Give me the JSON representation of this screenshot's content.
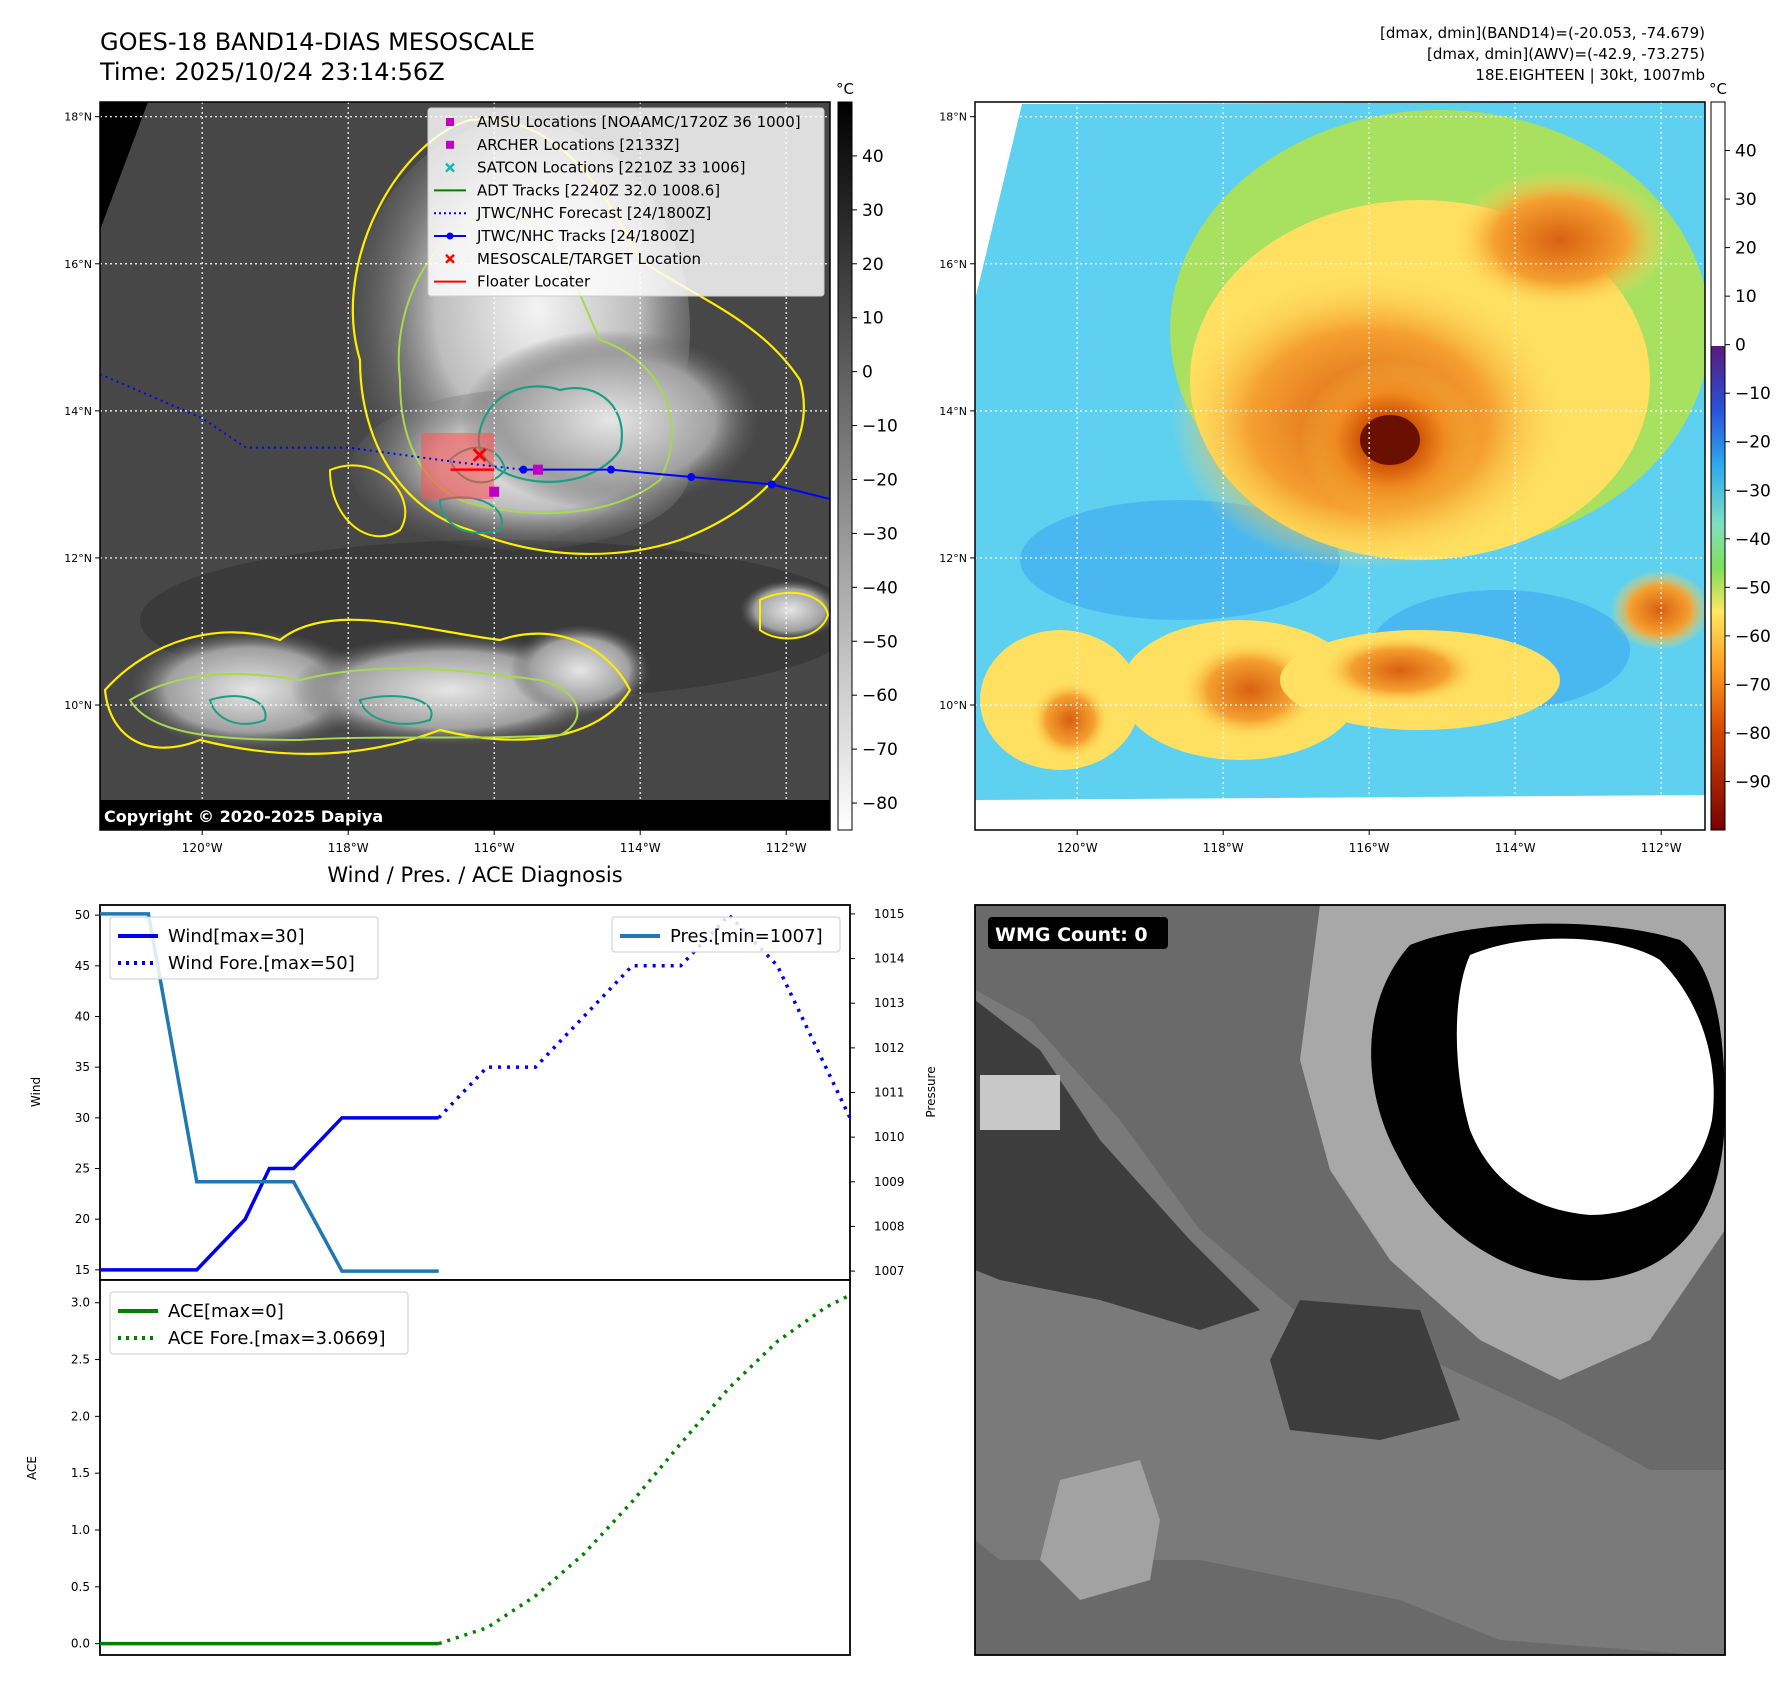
{
  "header": {
    "title_line1": "GOES-18 BAND14-DIAS MESOSCALE",
    "title_line2": "Time: 2025/10/24 23:14:56Z",
    "stats_line1": "[dmax, dmin](BAND14)=(-20.053, -74.679)",
    "stats_line2": "[dmax, dmin](AWV)=(-42.9, -73.275)",
    "stats_line3": "18E.EIGHTEEN | 30kt, 1007mb"
  },
  "map_axes": {
    "lat_labels": [
      "18°N",
      "16°N",
      "14°N",
      "12°N",
      "10°N"
    ],
    "lat_values": [
      18,
      16,
      14,
      12,
      10
    ],
    "lon_labels": [
      "120°W",
      "118°W",
      "116°W",
      "114°W",
      "112°W"
    ],
    "lon_values": [
      -120,
      -118,
      -116,
      -114,
      -112
    ],
    "lat_range": [
      8.3,
      18.2
    ],
    "lon_range": [
      -121.4,
      -111.4
    ]
  },
  "ir_panel": {
    "legend": [
      {
        "label": "AMSU Locations [NOAAMC/1720Z 36 1000]",
        "color": "#c000c0",
        "marker": "square"
      },
      {
        "label": "ARCHER Locations [2133Z]",
        "color": "#c000c0",
        "marker": "square"
      },
      {
        "label": "SATCON Locations [2210Z 33 1006]",
        "color": "#17b8b8",
        "marker": "x"
      },
      {
        "label": "ADT Tracks [2240Z 32.0 1008.6]",
        "color": "#008000",
        "marker": "line"
      },
      {
        "label": "JTWC/NHC Forecast [24/1800Z]",
        "color": "#0000ff",
        "marker": "dotted"
      },
      {
        "label": "JTWC/NHC Tracks [24/1800Z]",
        "color": "#0000ff",
        "marker": "line-dot"
      },
      {
        "label": "MESOSCALE/TARGET Location",
        "color": "#ff0000",
        "marker": "x"
      },
      {
        "label": "Floater Locater",
        "color": "#ff0000",
        "marker": "line"
      }
    ],
    "colorbar_unit": "°C",
    "colorbar_ticks": [
      "40",
      "30",
      "20",
      "10",
      "0",
      "−10",
      "−20",
      "−30",
      "−40",
      "−50",
      "−60",
      "−70",
      "−80"
    ],
    "colorbar_values": [
      40,
      30,
      20,
      10,
      0,
      -10,
      -20,
      -30,
      -40,
      -50,
      -60,
      -70,
      -80
    ],
    "colorbar_range": [
      -85,
      50
    ],
    "copyright": "Copyright © 2020-2025 Dapiya",
    "jtwc_track": {
      "lon": [
        -115.6,
        -114.4,
        -113.3,
        -112.2,
        -111.4
      ],
      "lat": [
        13.2,
        13.2,
        13.1,
        13.0,
        12.8
      ]
    },
    "jtwc_forecast": {
      "lon": [
        -121.4,
        -120.0,
        -119.4,
        -118.0,
        -116.5,
        -115.6
      ],
      "lat": [
        14.5,
        13.9,
        13.5,
        13.5,
        13.3,
        13.2
      ]
    },
    "amsu": {
      "lon": -115.4,
      "lat": 13.2
    },
    "archer": {
      "lon": -116.0,
      "lat": 12.9
    },
    "target": {
      "lon": -116.2,
      "lat": 13.4
    },
    "floater_box": {
      "lon": [
        -117.0,
        -116.0
      ],
      "lat": [
        12.8,
        13.7
      ]
    }
  },
  "awv_panel": {
    "colorbar_unit": "°C",
    "colorbar_ticks": [
      "40",
      "30",
      "20",
      "10",
      "0",
      "−10",
      "−20",
      "−30",
      "−40",
      "−50",
      "−60",
      "−70",
      "−80",
      "−90"
    ],
    "colorbar_values": [
      40,
      30,
      20,
      10,
      0,
      -10,
      -20,
      -30,
      -40,
      -50,
      -60,
      -70,
      -80,
      -90
    ],
    "colorbar_range": [
      -100,
      50
    ]
  },
  "chart_data": [
    {
      "type": "line",
      "title": "Wind / Pres. / ACE Diagnosis",
      "ylabel": "Wind",
      "y2label": "Pressure",
      "ylim": [
        14,
        51
      ],
      "y2lim": [
        1006.8,
        1015.2
      ],
      "xlim": [
        0,
        15.5
      ],
      "yticks": [
        50,
        45,
        40,
        35,
        30,
        25,
        20,
        15
      ],
      "y2ticks": [
        1015,
        1014,
        1013,
        1012,
        1011,
        1010,
        1009,
        1008,
        1007
      ],
      "legend_left": [
        "Wind[max=30]",
        "Wind Fore.[max=50]"
      ],
      "legend_right": [
        "Pres.[min=1007]"
      ],
      "series": [
        {
          "name": "Wind[max=30]",
          "axis": "left",
          "style": "solid",
          "color": "#0000ee",
          "x": [
            0,
            2,
            3,
            3.5,
            4,
            5,
            6,
            7
          ],
          "y": [
            15,
            15,
            20,
            25,
            25,
            30,
            30,
            30
          ]
        },
        {
          "name": "Wind Fore.[max=50]",
          "axis": "left",
          "style": "dotted",
          "color": "#0000ee",
          "x": [
            7,
            8,
            9,
            10,
            11,
            12,
            13,
            14,
            15,
            15.5
          ],
          "y": [
            30,
            35,
            35,
            40,
            45,
            45,
            50,
            45,
            35,
            30
          ]
        },
        {
          "name": "Pres.[min=1007]",
          "axis": "right",
          "style": "solid",
          "color": "#1f77b4",
          "x": [
            0,
            1,
            2,
            3,
            4,
            5,
            6,
            7
          ],
          "y": [
            1015,
            1015,
            1009,
            1009,
            1009,
            1007,
            1007,
            1007
          ]
        }
      ]
    },
    {
      "type": "line",
      "ylabel": "ACE",
      "ylim": [
        -0.1,
        3.2
      ],
      "xlim": [
        0,
        15.5
      ],
      "yticks": [
        3.0,
        2.5,
        2.0,
        1.5,
        1.0,
        0.5,
        0.0
      ],
      "ytick_labels": [
        "3.0",
        "2.5",
        "2.0",
        "1.5",
        "1.0",
        "0.5",
        "0.0"
      ],
      "legend": [
        "ACE[max=0]",
        "ACE Fore.[max=3.0669]"
      ],
      "series": [
        {
          "name": "ACE[max=0]",
          "style": "solid",
          "color": "#008000",
          "x": [
            0,
            7
          ],
          "y": [
            0,
            0
          ]
        },
        {
          "name": "ACE Fore.[max=3.0669]",
          "style": "dotted",
          "color": "#008000",
          "x": [
            7,
            8,
            9,
            10,
            11,
            12,
            13,
            14,
            15,
            15.5
          ],
          "y": [
            0,
            0.14,
            0.42,
            0.79,
            1.25,
            1.76,
            2.25,
            2.66,
            2.96,
            3.0669
          ]
        }
      ]
    }
  ],
  "wmg_panel": {
    "label": "WMG Count: 0"
  }
}
